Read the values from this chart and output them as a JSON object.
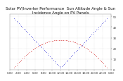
{
  "title": "Solar PV/Inverter Performance  Sun Altitude Angle & Sun Incidence Angle on PV Panels",
  "bg_color": "#ffffff",
  "grid_color": "#aaaaaa",
  "blue_color": "#0000cc",
  "red_color": "#cc0000",
  "ylim": [
    0,
    52
  ],
  "xlim": [
    0,
    48
  ],
  "yticks": [
    0,
    10,
    20,
    30,
    40,
    50
  ],
  "xtick_labels": [
    "0:00",
    "2:00",
    "4:00",
    "6:00",
    "8:00",
    "10:00",
    "12:00",
    "14:00",
    "16:00",
    "18:00",
    "20:00",
    "22:00",
    "0:00"
  ],
  "title_fontsize": 4.0,
  "tick_fontsize": 2.8,
  "blue_x1_start": 2,
  "blue_x1_end": 24,
  "blue_y1_start": 48,
  "blue_y1_end": 2,
  "blue_x2_start": 24,
  "blue_x2_end": 46,
  "blue_y2_start": 2,
  "blue_y2_end": 48,
  "red_x_start": 2,
  "red_x_end": 46,
  "red_peak_x": 24,
  "red_peak_y": 28,
  "red_base_y": 2
}
